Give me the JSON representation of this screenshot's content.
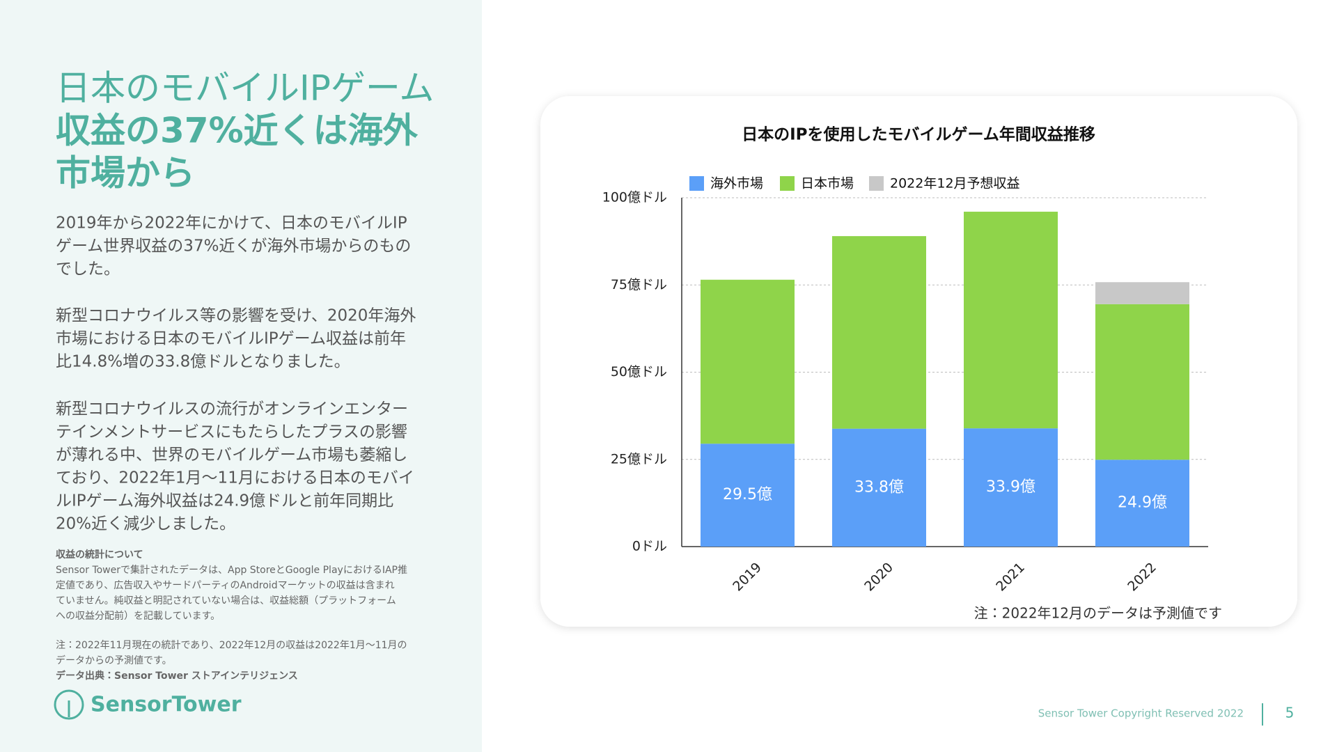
{
  "slide": {
    "title_lines": [
      "日本のモバイルIPゲーム",
      "収益の37%近くは海外",
      "市場から"
    ],
    "paragraphs": [
      [
        "2019年から2022年にかけて、日本のモバイルIP",
        "ゲーム世界収益の37%近くが海外市場からのもの",
        "でした。"
      ],
      [
        "新型コロナウイルス等の影響を受け、2020年海外",
        "市場における日本のモバイルIPゲーム収益は前年",
        "比14.8%増の33.8億ドルとなりました。"
      ],
      [
        "新型コロナウイルスの流行がオンラインエンター",
        "テインメントサービスにもたらしたプラスの影響",
        "が薄れる中、世界のモバイルゲーム市場も萎縮し",
        "ており、2022年1月〜11月における日本のモバイ",
        "ルIPゲーム海外収益は24.9億ドルと前年同期比",
        "20%近く減少しました。"
      ]
    ],
    "notes_heading": "収益の統計について",
    "notes": [
      "Sensor Towerで集計されたデータは、App StoreとGoogle PlayにおけるIAP推",
      "定値であり、広告収入やサードパーティのAndroidマーケットの収益は含まれ",
      "ていません。純収益と明記されていない場合は、収益総額（プラットフォーム",
      "への収益分配前）を記載しています。"
    ],
    "footnote": [
      "注：2022年11月現在の統計であり、2022年12月の収益は2022年1月〜11月の",
      "データからの予測値です。"
    ],
    "source": "データ出典：Sensor Tower ストアインテリジェンス",
    "logo": "SensorTower",
    "copyright": "Sensor Tower Copyright Reserved 2022",
    "page_number": "5"
  },
  "chart_data": {
    "type": "stacked_bar",
    "title": "日本のIPを使用したモバイルゲーム年間収益推移",
    "categories": [
      "2019",
      "2020",
      "2021",
      "2022"
    ],
    "series": [
      {
        "name": "海外市場",
        "color": "#5b9ff8",
        "values": [
          29.5,
          33.8,
          33.9,
          24.9
        ],
        "value_labels": [
          "29.5億",
          "33.8億",
          "33.9億",
          "24.9億"
        ]
      },
      {
        "name": "日本市場",
        "color": "#8fd44a",
        "values": [
          47,
          55.2,
          62.1,
          44.6
        ]
      },
      {
        "name": "2022年12月予想収益",
        "color": "#c8c8c8",
        "values": [
          null,
          null,
          null,
          6.3
        ]
      }
    ],
    "ylim": [
      0,
      100
    ],
    "yticks": [
      {
        "value": 0,
        "label": "0ドル"
      },
      {
        "value": 25,
        "label": "25億ドル"
      },
      {
        "value": 50,
        "label": "50億ドル"
      },
      {
        "value": 75,
        "label": "75億ドル"
      },
      {
        "value": 100,
        "label": "100億ドル"
      }
    ],
    "grid": true,
    "legend": "top",
    "note": "注：2022年12月のデータは予測値です"
  }
}
